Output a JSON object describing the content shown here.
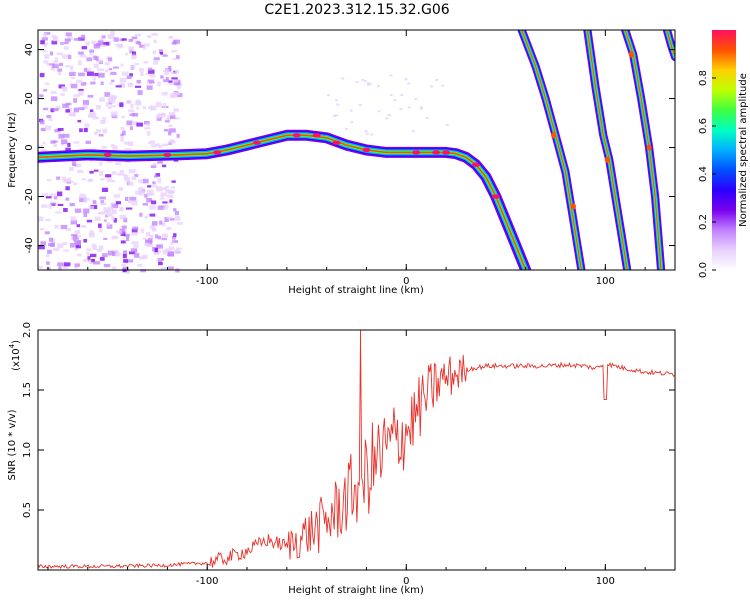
{
  "title": "C2E1.2023.312.15.32.G06",
  "colors": {
    "snr_line": "#e8322c",
    "colormap": [
      "#ffffff",
      "#e8d0ff",
      "#c080ff",
      "#7a00ee",
      "#2a00ff",
      "#0050ff",
      "#00b0ff",
      "#00ffc0",
      "#40ff40",
      "#c0ff00",
      "#ffd000",
      "#ff5000",
      "#ff1060"
    ]
  },
  "chart_data": [
    {
      "type": "heatmap",
      "xlabel": "Height of straight line (km)",
      "ylabel": "Frequency (Hz)",
      "xlim": [
        -185,
        135
      ],
      "ylim": [
        -50,
        48
      ],
      "x_ticks": [
        -100,
        0,
        100
      ],
      "y_ticks": [
        -40,
        -20,
        0,
        20,
        40
      ],
      "colorbar": {
        "label": "Normalized spectral amplitude",
        "range": [
          0,
          1
        ],
        "ticks": [
          "0.0",
          "0.2",
          "0.4",
          "0.6",
          "0.8"
        ],
        "tick_values": [
          0,
          0.2,
          0.4,
          0.6,
          0.8
        ]
      },
      "ridges": [
        {
          "x": [
            -185,
            -160,
            -140,
            -115,
            -100,
            -90,
            -80,
            -70,
            -60,
            -50,
            -40,
            -30,
            -20,
            -10,
            0,
            10,
            20,
            25,
            30,
            35,
            40,
            45,
            50,
            55,
            60
          ],
          "y": [
            -4,
            -3,
            -3.5,
            -3,
            -2.5,
            -1,
            1,
            3,
            5,
            5,
            4,
            1,
            -1,
            -2,
            -2,
            -2,
            -2,
            -2.5,
            -4,
            -7,
            -12,
            -20,
            -30,
            -40,
            -50
          ]
        },
        {
          "x": [
            58,
            65,
            70,
            75,
            80,
            84,
            88
          ],
          "y": [
            48,
            33,
            20,
            5,
            -10,
            -30,
            -50
          ]
        },
        {
          "x": [
            91,
            95,
            99,
            102,
            105,
            108,
            111
          ],
          "y": [
            48,
            25,
            5,
            -5,
            -20,
            -35,
            -50
          ]
        },
        {
          "x": [
            110,
            114,
            118,
            122,
            125,
            128
          ],
          "y": [
            48,
            38,
            20,
            0,
            -20,
            -50
          ]
        },
        {
          "x": [
            131,
            133,
            135
          ],
          "y": [
            48,
            42,
            37
          ]
        }
      ]
    },
    {
      "type": "line",
      "xlabel": "Height of straight line (km)",
      "ylabel": "SNR (10 * v/v)",
      "y_multiplier_label": "(x10",
      "y_multiplier_exp": "4",
      "xlim": [
        -185,
        135
      ],
      "ylim": [
        0,
        2.0
      ],
      "x_ticks": [
        -100,
        0,
        100
      ],
      "y_ticks": [
        "0.5",
        "1.0",
        "1.5",
        "2.0"
      ],
      "y_tick_values": [
        0.5,
        1.0,
        1.5,
        2.0
      ],
      "series": [
        {
          "x": [
            -185,
            -150,
            -120,
            -100,
            -90,
            -80,
            -70,
            -60,
            -50,
            -40,
            -35,
            -30,
            -25,
            -20,
            -15,
            -10,
            -5,
            0,
            5,
            10,
            15,
            20,
            30,
            40,
            50,
            60,
            70,
            80,
            90,
            95,
            100,
            110,
            120,
            135
          ],
          "y": [
            0.03,
            0.03,
            0.04,
            0.06,
            0.1,
            0.16,
            0.25,
            0.2,
            0.3,
            0.4,
            0.5,
            0.6,
            0.7,
            0.8,
            0.9,
            1.0,
            1.1,
            1.15,
            1.3,
            1.45,
            1.55,
            1.6,
            1.67,
            1.7,
            1.7,
            1.7,
            1.7,
            1.71,
            1.7,
            1.68,
            1.72,
            1.68,
            1.65,
            1.63
          ]
        }
      ]
    }
  ]
}
